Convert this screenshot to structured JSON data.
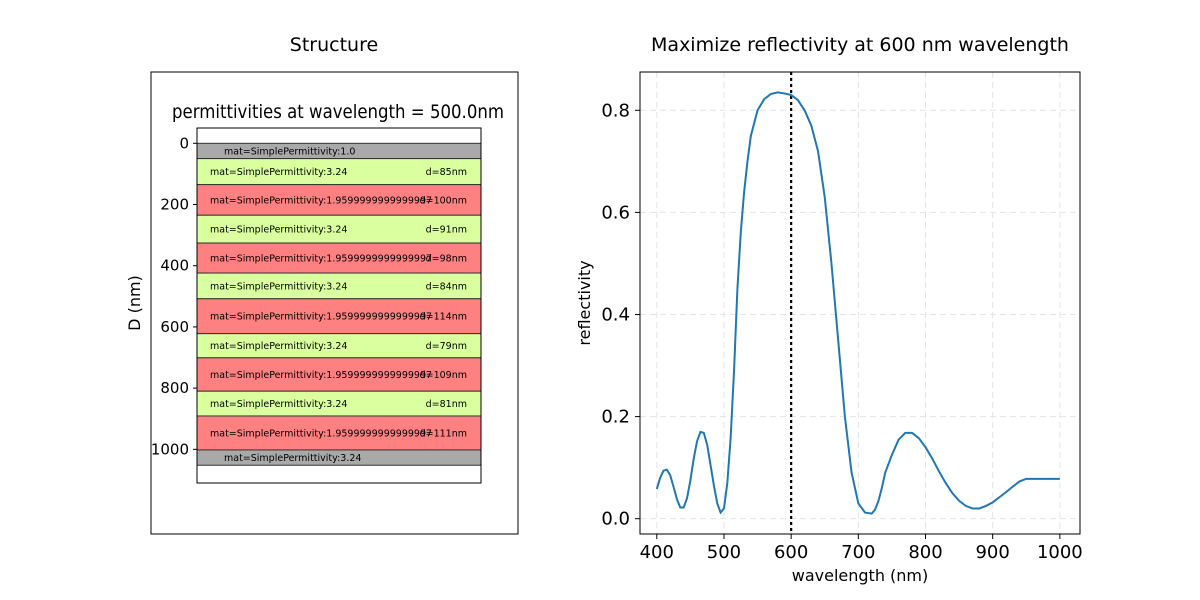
{
  "structure": {
    "panel_title": "Structure",
    "inner_title": "permittivities at wavelength = 500.0nm",
    "ylabel": "D (nm)",
    "y_ticks": [
      0,
      200,
      400,
      600,
      800,
      1000
    ],
    "y_range": [
      -50,
      1110
    ],
    "colors": {
      "ambient": "#a9a9a9",
      "high": "#d9ff9f",
      "low": "#ff8080"
    },
    "layers": [
      {
        "label": "mat=SimplePermittivity:1.0",
        "thickness": "",
        "kind": "ambient",
        "start": 0,
        "end": 50
      },
      {
        "label": "mat=SimplePermittivity:3.24",
        "thickness": "d=85nm",
        "kind": "high",
        "start": 50,
        "end": 135
      },
      {
        "label": "mat=SimplePermittivity:1.9599999999999997",
        "thickness": "d=100nm",
        "kind": "low",
        "start": 135,
        "end": 235
      },
      {
        "label": "mat=SimplePermittivity:3.24",
        "thickness": "d=91nm",
        "kind": "high",
        "start": 235,
        "end": 326
      },
      {
        "label": "mat=SimplePermittivity:1.9599999999999997",
        "thickness": "d=98nm",
        "kind": "low",
        "start": 326,
        "end": 424
      },
      {
        "label": "mat=SimplePermittivity:3.24",
        "thickness": "d=84nm",
        "kind": "high",
        "start": 424,
        "end": 508
      },
      {
        "label": "mat=SimplePermittivity:1.9599999999999997",
        "thickness": "d=114nm",
        "kind": "low",
        "start": 508,
        "end": 622
      },
      {
        "label": "mat=SimplePermittivity:3.24",
        "thickness": "d=79nm",
        "kind": "high",
        "start": 622,
        "end": 701
      },
      {
        "label": "mat=SimplePermittivity:1.9599999999999997",
        "thickness": "d=109nm",
        "kind": "low",
        "start": 701,
        "end": 810
      },
      {
        "label": "mat=SimplePermittivity:3.24",
        "thickness": "d=81nm",
        "kind": "high",
        "start": 810,
        "end": 891
      },
      {
        "label": "mat=SimplePermittivity:1.9599999999999997",
        "thickness": "d=111nm",
        "kind": "low",
        "start": 891,
        "end": 1002
      },
      {
        "label": "mat=SimplePermittivity:3.24",
        "thickness": "",
        "kind": "ambient",
        "start": 1002,
        "end": 1052
      }
    ]
  },
  "chart_data": {
    "type": "line",
    "title": "Maximize reflectivity at 600 nm wavelength",
    "xlabel": "wavelength (nm)",
    "ylabel": "reflectivity",
    "xlim": [
      375,
      1030
    ],
    "ylim": [
      -0.03,
      0.875
    ],
    "x_ticks": [
      400,
      500,
      600,
      700,
      800,
      900,
      1000
    ],
    "y_ticks": [
      0.0,
      0.2,
      0.4,
      0.6,
      0.8
    ],
    "y_tick_labels": [
      "0.0",
      "0.2",
      "0.4",
      "0.6",
      "0.8"
    ],
    "grid": true,
    "line_color": "#1f77b4",
    "vline": {
      "x": 600,
      "style": "dotted",
      "color": "#000000"
    },
    "series": [
      {
        "name": "reflectivity",
        "x": [
          400,
          405,
          410,
          415,
          420,
          425,
          430,
          435,
          440,
          445,
          450,
          455,
          460,
          465,
          470,
          475,
          480,
          485,
          490,
          495,
          500,
          505,
          510,
          515,
          520,
          525,
          530,
          535,
          540,
          550,
          560,
          570,
          580,
          590,
          600,
          610,
          620,
          630,
          640,
          650,
          660,
          670,
          680,
          690,
          700,
          710,
          720,
          725,
          730,
          735,
          740,
          750,
          760,
          770,
          780,
          790,
          800,
          810,
          820,
          830,
          840,
          850,
          860,
          870,
          880,
          890,
          900,
          910,
          920,
          930,
          940,
          950,
          960,
          970,
          980,
          990,
          1000
        ],
        "values": [
          0.058,
          0.08,
          0.094,
          0.096,
          0.085,
          0.062,
          0.038,
          0.022,
          0.022,
          0.04,
          0.075,
          0.118,
          0.152,
          0.17,
          0.168,
          0.145,
          0.105,
          0.065,
          0.03,
          0.012,
          0.02,
          0.07,
          0.16,
          0.29,
          0.45,
          0.56,
          0.64,
          0.7,
          0.75,
          0.8,
          0.822,
          0.832,
          0.835,
          0.833,
          0.83,
          0.82,
          0.8,
          0.77,
          0.72,
          0.63,
          0.5,
          0.35,
          0.2,
          0.09,
          0.03,
          0.012,
          0.01,
          0.018,
          0.035,
          0.06,
          0.09,
          0.125,
          0.155,
          0.168,
          0.168,
          0.158,
          0.14,
          0.118,
          0.093,
          0.07,
          0.05,
          0.035,
          0.025,
          0.02,
          0.02,
          0.025,
          0.032,
          0.042,
          0.052,
          0.063,
          0.073,
          0.078,
          0.078,
          0.078,
          0.078,
          0.078,
          0.078
        ]
      }
    ]
  }
}
